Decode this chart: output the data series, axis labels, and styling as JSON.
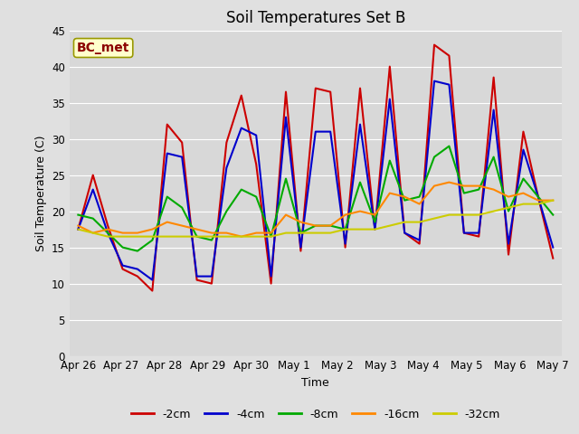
{
  "title": "Soil Temperatures Set B",
  "xlabel": "Time",
  "ylabel": "Soil Temperature (C)",
  "annotation": "BC_met",
  "ylim": [
    0,
    45
  ],
  "yticks": [
    0,
    5,
    10,
    15,
    20,
    25,
    30,
    35,
    40,
    45
  ],
  "x_labels": [
    "Apr 26",
    "Apr 27",
    "Apr 28",
    "Apr 29",
    "Apr 30",
    "May 1",
    "May 2",
    "May 3",
    "May 4",
    "May 5",
    "May 6",
    "May 7"
  ],
  "colors": {
    "-2cm": "#cc0000",
    "-4cm": "#0000cc",
    "-8cm": "#00aa00",
    "-16cm": "#ff8800",
    "-32cm": "#cccc00"
  },
  "fig_bg": "#e0e0e0",
  "plot_bg": "#d8d8d8",
  "grid_color": "#ffffff",
  "series": {
    "-2cm": [
      17.5,
      25.0,
      18.0,
      12.0,
      11.0,
      9.0,
      32.0,
      29.5,
      10.5,
      10.0,
      29.5,
      36.0,
      26.5,
      10.0,
      36.5,
      14.5,
      37.0,
      36.5,
      15.0,
      37.0,
      17.5,
      40.0,
      17.0,
      15.5,
      43.0,
      41.5,
      17.0,
      16.5,
      38.5,
      14.0,
      31.0,
      22.0,
      13.5
    ],
    "-4cm": [
      17.5,
      23.0,
      17.0,
      12.5,
      12.0,
      10.5,
      28.0,
      27.5,
      11.0,
      11.0,
      26.0,
      31.5,
      30.5,
      11.0,
      33.0,
      15.0,
      31.0,
      31.0,
      15.5,
      32.0,
      17.5,
      35.5,
      17.0,
      16.0,
      38.0,
      37.5,
      17.0,
      17.0,
      34.0,
      15.5,
      28.5,
      22.0,
      15.0
    ],
    "-8cm": [
      19.5,
      19.0,
      17.0,
      15.0,
      14.5,
      16.0,
      22.0,
      20.5,
      16.5,
      16.0,
      20.0,
      23.0,
      22.0,
      16.5,
      24.5,
      17.0,
      18.0,
      18.0,
      17.5,
      24.0,
      18.5,
      27.0,
      21.5,
      22.0,
      27.5,
      29.0,
      22.5,
      23.0,
      27.5,
      20.0,
      24.5,
      22.0,
      19.5
    ],
    "-16cm": [
      18.0,
      17.0,
      17.5,
      17.0,
      17.0,
      17.5,
      18.5,
      18.0,
      17.5,
      17.0,
      17.0,
      16.5,
      17.0,
      17.0,
      19.5,
      18.5,
      18.0,
      18.0,
      19.5,
      20.0,
      19.5,
      22.5,
      22.0,
      21.0,
      23.5,
      24.0,
      23.5,
      23.5,
      23.0,
      22.0,
      22.5,
      21.5,
      21.5
    ],
    "-32cm": [
      17.5,
      17.0,
      16.5,
      16.5,
      16.5,
      16.5,
      16.5,
      16.5,
      16.5,
      16.5,
      16.5,
      16.5,
      16.5,
      16.5,
      17.0,
      17.0,
      17.0,
      17.0,
      17.5,
      17.5,
      17.5,
      18.0,
      18.5,
      18.5,
      19.0,
      19.5,
      19.5,
      19.5,
      20.0,
      20.5,
      21.0,
      21.0,
      21.5
    ]
  },
  "n_points": 33,
  "days_total": 11
}
